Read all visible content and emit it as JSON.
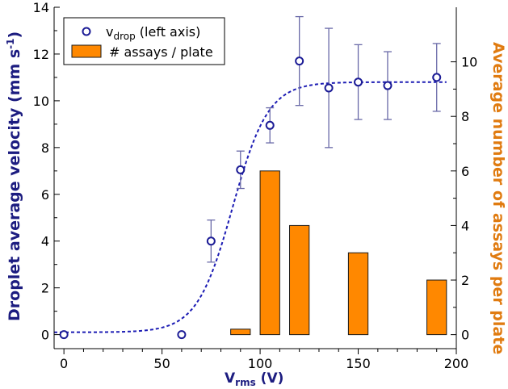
{
  "chart_data": {
    "type": "bar+scatter",
    "title": "",
    "xlabel": {
      "main": "V",
      "sub": "rms",
      "tail": " (V)"
    },
    "ylabel_left": {
      "pre": "Droplet average velocity (mm s",
      "sup": "-1",
      "post": ")"
    },
    "ylabel_right": "Average number of assays per plate",
    "xlim": [
      -5,
      200
    ],
    "ylim_left": [
      -0.6,
      14
    ],
    "ylim_right": [
      -0.514,
      12
    ],
    "xticks": [
      0,
      50,
      100,
      150,
      200
    ],
    "yticks_left": [
      0,
      2,
      4,
      6,
      8,
      10,
      12,
      14
    ],
    "yticks_right": [
      0,
      2,
      4,
      6,
      8,
      10
    ],
    "legend": {
      "position": "top-left",
      "vdrop": {
        "main": "v",
        "sub": "drop",
        "tail": " (left axis)"
      },
      "assays": "# assays / plate"
    },
    "colors": {
      "marker": "#1c1c96",
      "errorbar": "#6a6aa8",
      "fit": "#1c1cb4",
      "bar_fill": "#ff8800",
      "bar_edge": "#1a1a1a",
      "left_label": "#1c1c80",
      "right_label": "#e07b10"
    },
    "series": [
      {
        "name": "vdrop (left axis)",
        "kind": "scatter",
        "axis": "left",
        "x": [
          0,
          60,
          75,
          90,
          105,
          120,
          135,
          150,
          165,
          190
        ],
        "y": [
          0.0,
          0.0,
          4.0,
          7.05,
          8.95,
          11.7,
          10.55,
          10.8,
          10.65,
          11.0
        ],
        "err": [
          0,
          0,
          0.9,
          0.8,
          0.75,
          1.9,
          2.55,
          1.6,
          1.45,
          1.45
        ]
      },
      {
        "name": "# assays / plate",
        "kind": "bar",
        "axis": "right",
        "x": [
          90,
          105,
          120,
          150,
          190
        ],
        "values": [
          0.2,
          6.0,
          4.0,
          3.0,
          2.0
        ],
        "bar_width": 10
      },
      {
        "name": "fit",
        "kind": "sigmoid",
        "axis": "left",
        "A": 10.8,
        "x0": 86,
        "k": 0.11,
        "base": 0.1,
        "x_range": [
          -5,
          195
        ]
      }
    ]
  }
}
